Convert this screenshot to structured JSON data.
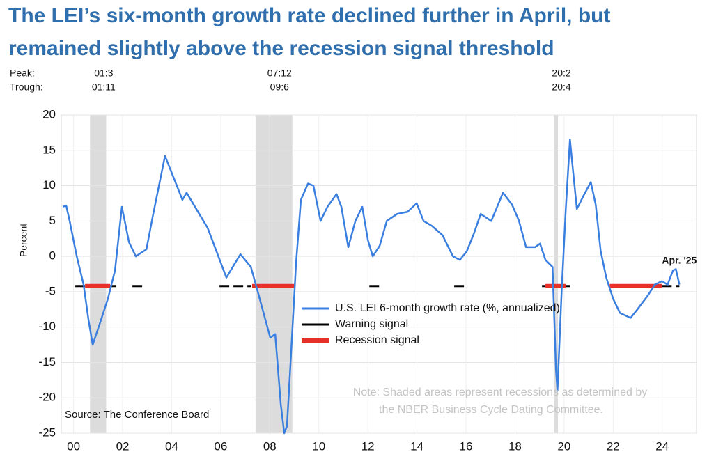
{
  "chart_data": {
    "type": "line",
    "title_lines": [
      "The LEI’s six-month growth rate declined further in April, but",
      "remained slightly above the recession signal threshold"
    ],
    "y_label": "Percent",
    "peak_label": "Peak:",
    "trough_label": "Trough:",
    "recessions": [
      {
        "peak": "01:3",
        "trough": "01:11",
        "start": 2001.17,
        "end": 2001.83
      },
      {
        "peak": "07:12",
        "trough": "09:6",
        "start": 2007.92,
        "end": 2009.42
      },
      {
        "peak": "20:2",
        "trough": "20:4",
        "start": 2020.08,
        "end": 2020.25
      }
    ],
    "series": [
      {
        "name": "U.S. LEI 6-month growth rate (%, annualized)",
        "color": "#3a7fe0",
        "x": [
          2000.06,
          2000.2,
          2000.34,
          2000.63,
          2000.91,
          2001.11,
          2001.28,
          2001.62,
          2001.9,
          2002.19,
          2002.47,
          2002.76,
          2003.04,
          2003.47,
          2003.75,
          2004.23,
          2004.94,
          2005.11,
          2005.97,
          2006.73,
          2007.3,
          2007.73,
          2008.01,
          2008.52,
          2008.72,
          2008.95,
          2009.09,
          2009.2,
          2009.38,
          2009.57,
          2009.77,
          2010.06,
          2010.28,
          2010.57,
          2010.85,
          2011.22,
          2011.42,
          2011.7,
          2011.99,
          2012.27,
          2012.5,
          2012.7,
          2012.98,
          2013.27,
          2013.69,
          2014.12,
          2014.49,
          2014.77,
          2015.11,
          2015.54,
          2015.97,
          2016.25,
          2016.53,
          2016.82,
          2017.1,
          2017.53,
          2018.01,
          2018.38,
          2018.66,
          2018.95,
          2019.32,
          2019.52,
          2019.74,
          2020.03,
          2020.17,
          2020.23,
          2020.4,
          2020.57,
          2020.74,
          2020.85,
          2021.02,
          2021.31,
          2021.59,
          2021.79,
          2021.99,
          2022.22,
          2022.5,
          2022.78,
          2023.21,
          2023.49,
          2023.92,
          2024.2,
          2024.49,
          2024.72,
          2024.94,
          2025.06,
          2025.2
        ],
        "values": [
          7,
          7.2,
          5,
          0,
          -4,
          -9,
          -12.5,
          -9,
          -6,
          -2,
          7,
          2,
          0,
          1,
          6,
          14.2,
          8,
          9,
          4,
          -3,
          0.3,
          -1.5,
          -5,
          -11.5,
          -11,
          -21,
          -25,
          -24,
          -13,
          -1,
          8,
          10.3,
          10,
          5,
          7,
          8.8,
          7,
          1.3,
          5,
          7,
          2.3,
          0,
          1.5,
          5,
          6,
          6.3,
          7.5,
          5,
          4.3,
          3,
          0,
          -0.5,
          0.7,
          3.2,
          6,
          5,
          9,
          7.3,
          5,
          1.3,
          1.3,
          1.8,
          -0.5,
          -1.5,
          -16,
          -19,
          -5,
          6.7,
          16.5,
          12.6,
          6.7,
          8.7,
          10.5,
          7.3,
          0.8,
          -3,
          -6,
          -8,
          -8.7,
          -7.5,
          -5.5,
          -4,
          -3.5,
          -4,
          -2,
          -1.8,
          -4
        ]
      },
      {
        "name": "Warning signal",
        "color": "#000000",
        "level": -4.2,
        "periods": [
          [
            2000.57,
            2000.97
          ],
          [
            2001.99,
            2002.24
          ],
          [
            2002.9,
            2003.32
          ],
          [
            2006.45,
            2007.73
          ],
          [
            2012.56,
            2013.04
          ],
          [
            2016.02,
            2016.42
          ],
          [
            2019.6,
            2019.74
          ],
          [
            2020.57,
            2020.74
          ],
          [
            2024.49,
            2025.2
          ]
        ]
      },
      {
        "name": "Recession signal",
        "color": "#e8302a",
        "level": -4.2,
        "periods": [
          [
            2000.97,
            2001.99
          ],
          [
            2007.78,
            2009.52
          ],
          [
            2019.74,
            2020.57
          ],
          [
            2022.36,
            2024.49
          ]
        ]
      }
    ],
    "xlim": [
      2000,
      2025.9
    ],
    "xticks": [
      {
        "value": 2000.5,
        "label": "00"
      },
      {
        "value": 2002.5,
        "label": "02"
      },
      {
        "value": 2004.5,
        "label": "04"
      },
      {
        "value": 2006.5,
        "label": "06"
      },
      {
        "value": 2008.5,
        "label": "08"
      },
      {
        "value": 2010.5,
        "label": "10"
      },
      {
        "value": 2012.5,
        "label": "12"
      },
      {
        "value": 2014.5,
        "label": "14"
      },
      {
        "value": 2016.5,
        "label": "16"
      },
      {
        "value": 2018.5,
        "label": "18"
      },
      {
        "value": 2020.5,
        "label": "20"
      },
      {
        "value": 2022.5,
        "label": "22"
      },
      {
        "value": 2024.5,
        "label": "24"
      }
    ],
    "ylim": [
      -25,
      20
    ],
    "yticks": [
      -25,
      -20,
      -15,
      -10,
      -5,
      0,
      5,
      10,
      15,
      20
    ],
    "grid": true,
    "end_label": "Apr. '25",
    "source": "Source: The Conference Board",
    "note_lines": [
      "Note: Shaded areas represent recessions as determined by",
      "the NBER Business Cycle Dating Committee."
    ]
  }
}
